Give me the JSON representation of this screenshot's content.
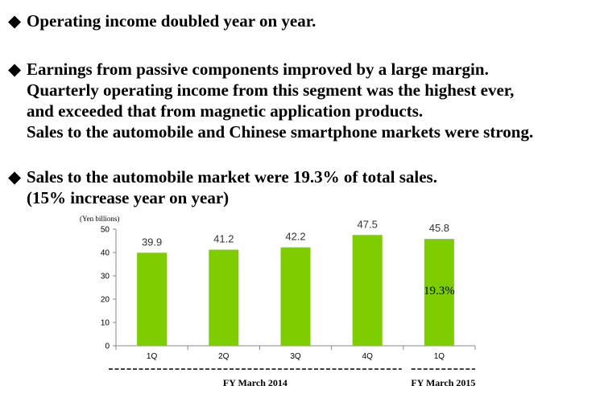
{
  "bullets": [
    {
      "lines": [
        "Operating income doubled year on year."
      ]
    },
    {
      "lines": [
        "Earnings from passive components improved by a large margin.",
        "Quarterly operating income from this segment was the highest ever,",
        "and exceeded that from magnetic application products.",
        "Sales to the automobile and Chinese smartphone markets were strong."
      ]
    },
    {
      "lines": [
        "Sales to the automobile market were 19.3% of total sales.",
        "(15% increase year on year)"
      ]
    }
  ],
  "diamond": "◆",
  "chart_data": {
    "type": "bar",
    "categories": [
      "1Q",
      "2Q",
      "3Q",
      "4Q",
      "1Q"
    ],
    "values": [
      39.9,
      41.2,
      42.2,
      47.5,
      45.8
    ],
    "value_labels": [
      "39.9",
      "41.2",
      "42.2",
      "47.5",
      "45.8"
    ],
    "ylabel": "(Yen billions)",
    "ylim": [
      0,
      50
    ],
    "yticks": [
      0,
      10,
      20,
      30,
      40,
      50
    ],
    "grid": false,
    "bar_color": "#7dcd00",
    "annotation": {
      "text": "19.3%",
      "category_index": 4
    },
    "periods": [
      {
        "label": "FY March 2014",
        "first_category": 0,
        "last_category": 3
      },
      {
        "label": "FY March 2015",
        "first_category": 4,
        "last_category": 4
      }
    ]
  }
}
